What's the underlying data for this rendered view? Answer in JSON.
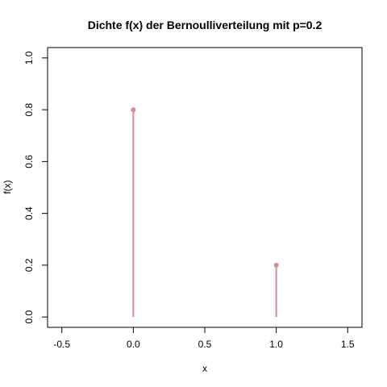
{
  "chart_data": {
    "type": "scatter",
    "title": "Dichte f(x) der Bernoulliverteilung mit p=0.2",
    "xlabel": "x",
    "ylabel": "f(x)",
    "xlim": [
      -0.6,
      1.6
    ],
    "ylim": [
      -0.04,
      1.04
    ],
    "x_ticks": [
      "-0.5",
      "0.0",
      "0.5",
      "1.0",
      "1.5"
    ],
    "y_ticks": [
      "0.0",
      "0.2",
      "0.4",
      "0.6",
      "0.8",
      "1.0"
    ],
    "points": [
      {
        "x": 0,
        "y": 0.8
      },
      {
        "x": 1,
        "y": 0.2
      }
    ],
    "grid": false,
    "color": "#d98c96"
  }
}
